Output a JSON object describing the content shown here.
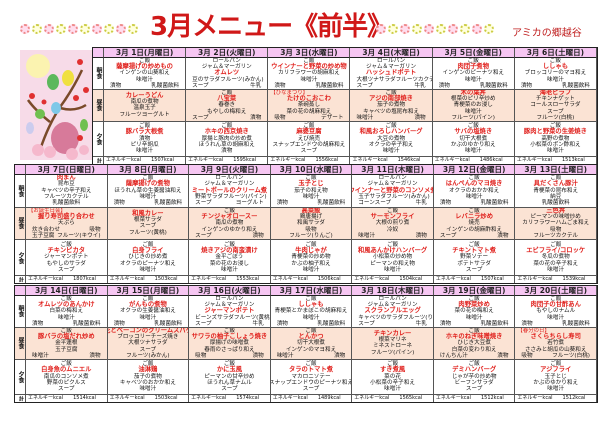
{
  "header": {
    "title": "3月メニュー《前半》",
    "facility": "アミカの郷越谷"
  },
  "row_labels": {
    "b": "朝食",
    "l": "昼食",
    "d": "夕食",
    "t": "計"
  },
  "energy_label": "エネルギーkcal",
  "colors": {
    "title": "#d01818",
    "main_dish": "#e0201c",
    "date_header": "#f6c6f2",
    "lunch_row": "#fbe3d4"
  },
  "weeks": [
    {
      "days": [
        {
          "date": "3月 1日(月曜日)",
          "energy": "1507kcal",
          "b": [
            "ご飯",
            {
              "main": "薩摩揚げの炒めもの"
            },
            "インゲンの山葵和え",
            "味噌汁",
            [
              "漬物",
              "乳酸菌飲料"
            ]
          ],
          "l": [
            {
              "main": "カレーうどん"
            },
            "南瓜の煮物",
            "温泉玉子",
            "フルーツヨーグルト"
          ],
          "d": [
            "ご飯",
            {
              "main": "豚バラ大根煮"
            },
            "漬物",
            "ピリ辛胡瓜",
            "味噌汁"
          ]
        },
        {
          "date": "3月 2日(火曜日)",
          "energy": "1595kcal",
          "b": [
            "ロールパン",
            "ジャム＆マーガリン",
            {
              "main": "オムレツ"
            },
            [
              "豆のサラダ",
              "フルーツ(みかん)"
            ],
            [
              "スープ",
              "牛乳"
            ]
          ],
          "l": [
            "ご飯",
            {
              "main": "八宝菜"
            },
            "春巻き",
            "もやしの梅和え",
            [
              "スープ",
              "漬物"
            ]
          ],
          "d": [
            "ご飯",
            {
              "main": "ホキの西京焼き"
            },
            "厚揚と豚肉の炒め煮",
            "ほうれん草の胡麻和え",
            "漬物"
          ]
        },
        {
          "date": "3月 3日(水曜日)",
          "energy": "1556kcal",
          "b": [
            "ご飯",
            {
              "main": "ウインナーと野菜の炒め物"
            },
            "カリフラワーの胡麻和え",
            "味噌汁",
            [
              "漬物",
              "乳酸菌飲料"
            ]
          ],
          "l": [
            {
              "note": "【ひなまつり】"
            },
            {
              "main": "たけのこおこわ"
            },
            "茶碗蒸し",
            "菜の花の胡麻和え",
            [
              "吸物",
              "デザート"
            ]
          ],
          "d": [
            "ご飯",
            {
              "main": "麻婆豆腐"
            },
            "えび焼売",
            "スナップエンドウの胡麻和え",
            "スープ"
          ]
        },
        {
          "date": "3月 4日(木曜日)",
          "energy": "1546kcal",
          "b": [
            "ロールパン",
            "ジャム＆マーガリン",
            {
              "main": "ハッシュドポテト"
            },
            [
              "大根ツナサラダ",
              "フルーツカクテル"
            ],
            [
              "スープ",
              "牛乳"
            ]
          ],
          "l": [
            "ご飯",
            {
              "main": "アジの南部焼き"
            },
            "茄子の煮物",
            "キャベツの塩昆布和え",
            [
              "味噌汁",
              "漬物"
            ]
          ],
          "d": [
            "ご飯",
            {
              "main": "和風おろしハンバーグ"
            },
            "大豆の煮物",
            "オクラの辛子和え",
            "味噌汁"
          ]
        },
        {
          "date": "3月 5日(金曜日)",
          "energy": "1486kcal",
          "b": [
            "ご飯",
            {
              "main": "肉団子煮物"
            },
            "インゲンのピーナツ和え",
            "味噌汁",
            [
              "漬物",
              "乳酸菌飲料"
            ]
          ],
          "l": [
            {
              "main": "木の葉丼"
            },
            "根菜のピリ辛炒め",
            "青梗菜のお浸し",
            "味噌汁",
            "フルーツ(パイン)"
          ],
          "d": [
            "ご飯",
            {
              "main": "サバの塩焼き"
            },
            "切干大根煮",
            "かぶのゆかり和え",
            "味噌汁"
          ]
        },
        {
          "date": "3月 6日(土曜日)",
          "energy": "1513kcal",
          "b": [
            "ご飯",
            {
              "main": "ししゃも"
            },
            "ブロッコリーのマヨ和え",
            "味噌汁",
            [
              "漬物",
              "乳酸菌飲料"
            ]
          ],
          "l": [
            {
              "main": "海老ピラフ"
            },
            "チキンナゲット",
            "コールスローサラダ",
            "スープ",
            "フルーツ(白桃)"
          ],
          "d": [
            "ご飯",
            {
              "main": "豚肉と野菜の生姜焼き"
            },
            "高野の煮物",
            "小松菜のポン酢和え",
            "味噌汁"
          ]
        }
      ]
    },
    {
      "days": [
        {
          "date": "3月 7日(日曜日)",
          "energy": "1807kcal",
          "b": [
            {
              "main": "肉まん"
            },
            "昆布豆",
            "キャベツの辛子和え",
            "フルーツカクテル",
            "乳酸菌飲料"
          ],
          "l": [
            {
              "note": "【お誕生日会】"
            },
            {
              "main": "握り寿司盛り合わせ"
            },
            "天ぷら",
            [
              "炊き合わせ",
              "吸物"
            ],
            [
              "玉子豆腐",
              "フルーツ(キウイ)"
            ]
          ],
          "d": [
            "ご飯",
            {
              "main": "チキンピカタ"
            },
            "ジャーマンポテト",
            "もやしのサラダ",
            "スープ"
          ]
        },
        {
          "date": "3月 8日(月曜日)",
          "energy": "1503kcal",
          "b": [
            "ご飯",
            {
              "main": "薩摩揚げの煮物"
            },
            "ほうれん草の生姜醤油和え",
            "味噌汁",
            [
              "漬物",
              "乳酸菌飲料"
            ]
          ],
          "l": [
            {
              "main": "和風カレー"
            },
            "根菜サラダ",
            "スープ",
            "フルーツ(黄桃)"
          ],
          "d": [
            "ご飯",
            {
              "main": "白身フライ"
            },
            "ひじきの炒め煮",
            "オクラのピーナツ和え",
            "味噌汁"
          ]
        },
        {
          "date": "3月 9日(火曜日)",
          "energy": "1553kcal",
          "b": [
            "ロールパン",
            "ジャム＆マーガリン",
            {
              "main": "ミートボールのクリーム煮"
            },
            [
              "野菜サラダ",
              "フルーツ(パイン)"
            ],
            [
              "スープ",
              "ヨーグルト"
            ]
          ],
          "l": [
            "ご飯",
            {
              "main": "チンジャオロースー"
            },
            "南瓜の煮物",
            "インゲンのゆかり和え",
            [
              "スープ",
              "漬物"
            ]
          ],
          "d": [
            "ご飯",
            {
              "main": "焼きアジの南蛮漬け"
            },
            "金平ごぼう",
            "菜の花のお浸し",
            "味噌汁"
          ]
        },
        {
          "date": "3月 10日(水曜日)",
          "energy": "1506kcal",
          "b": [
            "ご飯",
            {
              "main": "玉子とじ"
            },
            "茄子の和え物",
            "味噌汁",
            [
              "漬物",
              "乳酸菌飲料"
            ]
          ],
          "l": [
            {
              "main": "高菜飯"
            },
            "鶏唐揚げ",
            "和風サラダ",
            "吸物",
            "フルーツ(りんご)"
          ],
          "d": [
            "ご飯",
            {
              "main": "牛肉じゃが"
            },
            "青梗菜の炒め物",
            "かぶの柚子和え",
            "味噌汁"
          ]
        },
        {
          "date": "3月 11日(木曜日)",
          "energy": "1504kcal",
          "b": [
            "ロールパン",
            "ジャム＆マーガリン",
            {
              "main": "ウインナーと野菜のコンソメ煮"
            },
            [
              "玉子サラダ",
              "フルーツ(みかん)"
            ],
            [
              "コーンスープ",
              "牛乳"
            ]
          ],
          "l": [
            "ご飯",
            {
              "main": "サーモンフライ"
            },
            "大根の煎り煮",
            "冷奴",
            [
              "味噌汁",
              "漬物"
            ]
          ],
          "d": [
            "ご飯",
            {
              "main": "和風あんかけハンバーグ"
            },
            "小松菜の炒め物",
            "ピーマンの和え物",
            "味噌汁"
          ]
        },
        {
          "date": "3月 12日(金曜日)",
          "energy": "1507kcal",
          "b": [
            "ご飯",
            {
              "main": "はんぺんのマヨ焼き"
            },
            "オクラのおかか和え",
            "味噌汁",
            [
              "漬物",
              "乳酸菌飲料"
            ]
          ],
          "l": [
            "ご飯",
            {
              "main": "レバニラ炒め"
            },
            "焼売",
            "インゲンの胡麻酢和え",
            [
              "スープ",
              "漬物"
            ]
          ],
          "d": [
            "ご飯",
            {
              "main": "チキントマト煮"
            },
            "野菜ソテー",
            "ポテトサラダ",
            "スープ"
          ]
        },
        {
          "date": "3月 13日(土曜日)",
          "energy": "1539kcal",
          "b": [
            "ご飯",
            {
              "main": "具だくさん豚汁"
            },
            "青梗菜の昆布和え",
            "納豆",
            "乳酸菌飲料"
          ],
          "l": [
            {
              "main": "三色丼"
            },
            "ピーマンの味噌炒め",
            "カリフラワーハムごま和え",
            "吸物",
            "フルーツカクテル"
          ],
          "d": [
            "ご飯",
            {
              "main": "エビフライ/コロッケ"
            },
            "冬瓜の煮物",
            "菜の花の辛子和え",
            "味噌汁"
          ]
        }
      ]
    },
    {
      "days": [
        {
          "date": "3月 14日(日曜日)",
          "energy": "1514kcal",
          "b": [
            "ご飯",
            {
              "main": "オムレツのあんかけ"
            },
            "白菜の梅和え",
            "味噌汁",
            [
              "漬物",
              "乳酸菌飲料"
            ]
          ],
          "l": [
            "ご飯",
            {
              "main": "豚バラの塩だれ炒め"
            },
            "金平蓮根",
            "玉子豆腐",
            [
              "味噌汁",
              "漬物"
            ]
          ],
          "d": [
            "ご飯",
            {
              "main": "白身魚のムニエル"
            },
            "南瓜のコンソメ煮",
            "野菜のピクルス",
            "スープ"
          ]
        },
        {
          "date": "3月 15日(月曜日)",
          "energy": "1503kcal",
          "b": [
            "ご飯",
            {
              "main": "がんもの煮物"
            },
            "オクラの生姜醤油和え",
            "味噌汁",
            [
              "漬物",
              "乳酸菌飲料"
            ]
          ],
          "l": [
            {
              "main": "菜の花とベーコンのクリームスパゲティ"
            },
            "ブロッコリーチーズ焼き",
            "大根ツナサラダ",
            "スープ",
            "フルーツ(みかん)"
          ],
          "d": [
            "ご飯",
            {
              "main": "油淋鶏"
            },
            "茄子の煮物",
            "キャベツのおかか和え",
            "味噌汁"
          ]
        },
        {
          "date": "3月 16日(火曜日)",
          "energy": "1574kcal",
          "b": [
            "ロールパン",
            "ジャム＆マーガリン",
            {
              "main": "ジャーマンポテト"
            },
            [
              "ビーンズサラダ",
              "フルーツ(黄桃)"
            ],
            [
              "スープ",
              "牛乳"
            ]
          ],
          "l": [
            "ご飯",
            {
              "main": "サワラの柚子こしょう焼き"
            },
            "厚揚げの味噌煮",
            "春雨のさっぱり和え",
            [
              "吸物",
              "漬物"
            ]
          ],
          "d": [
            "ご飯",
            {
              "main": "かに玉風"
            },
            "ピーマンの甘辛炒め",
            "ほうれん草ナムル",
            "スープ"
          ]
        },
        {
          "date": "3月 17日(水曜日)",
          "energy": "1489kcal",
          "b": [
            "ご飯",
            {
              "main": "ししゃも"
            },
            "青梗菜とかまぼこの胡麻和え",
            "味噌汁",
            [
              "漬物",
              "乳酸菌飲料"
            ]
          ],
          "l": [
            "ご飯",
            {
              "main": "とんかつ"
            },
            "切干大根煮",
            "インゲンのマヨ和え",
            [
              "味噌汁",
              "漬物"
            ]
          ],
          "d": [
            "ご飯",
            {
              "main": "タラのトマト煮"
            },
            "マカロニソテー",
            "スナップエンドウのピーナツ和え",
            "スープ"
          ]
        },
        {
          "date": "3月 18日(木曜日)",
          "energy": "1565kcal",
          "b": [
            "ロールパン",
            "ジャム＆マーガリン",
            {
              "main": "スクランブルエッグ"
            },
            [
              "キャベツのサラダ",
              "フルーツ(りんご)"
            ],
            [
              "スープ",
              "牛乳"
            ]
          ],
          "l": [
            {
              "main": "チキンカレー"
            },
            "根菜マリネ",
            "ミネストローネ",
            "フルーツ(パイン)"
          ],
          "d": [
            "ご飯",
            {
              "main": "すき煮風"
            },
            "菜の花",
            "小松菜の辛子和え",
            "味噌汁"
          ]
        },
        {
          "date": "3月 19日(金曜日)",
          "energy": "1512kcal",
          "b": [
            "ご飯",
            {
              "main": "肉野菜炒め"
            },
            "菜の花の梅和え",
            "味噌汁",
            [
              "漬物",
              "乳酸菌飲料"
            ]
          ],
          "l": [
            "ご飯",
            {
              "main": "ホキのねぎ味噌焼き"
            },
            "ひじき大豆煮",
            "白菜の変わり和え",
            [
              "けんちん汁",
              "漬物"
            ]
          ],
          "d": [
            "ご飯",
            {
              "main": "デミハンバーグ"
            },
            "じゃが芋の炒め物",
            "ビーフンサラダ",
            "スープ"
          ]
        },
        {
          "date": "3月 20日(土曜日)",
          "energy": "1512kcal",
          "b": [
            "ご飯",
            {
              "main": "肉団子の甘酢あん"
            },
            "もやしのナムル",
            "味噌汁",
            [
              "漬物",
              "乳酸菌飲料"
            ]
          ],
          "l": [
            {
              "note": "【春分の日】"
            },
            {
              "main": "さくらちらし寿司"
            },
            "若竹煮",
            "ささみと胡瓜の山葵和え",
            [
              "吸物",
              "フルーツ(白桃)"
            ]
          ],
          "d": [
            "ご飯",
            {
              "main": "アジフライ"
            },
            "玉子とじ",
            "かぶのゆかり和え",
            "味噌汁"
          ]
        }
      ]
    }
  ]
}
